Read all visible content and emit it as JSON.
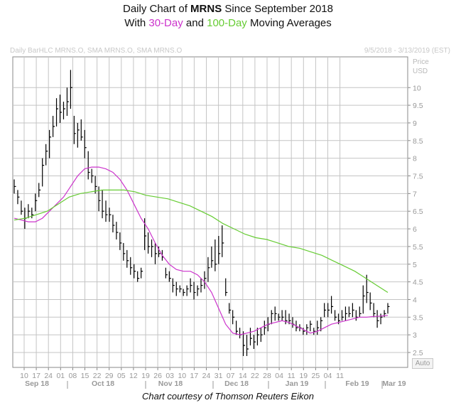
{
  "header": {
    "title_prefix": "Daily Chart of ",
    "ticker": "MRNS",
    "title_suffix": " Since September 2018",
    "sub_with": "With ",
    "sub_ma30": "30-Day",
    "sub_and": " and ",
    "sub_ma100": "100-Day",
    "sub_tail": " Moving Averages",
    "legend_left": "Daily BarHLC MRNS.O, SMA MRNS.O, SMA MRNS.O",
    "legend_right": "9/5/2018 - 3/13/2019 (EST)",
    "price_title": "Price",
    "price_unit": "USD",
    "auto_label": "Auto",
    "credit": "Chart courtesy of Thomson Reuters Eikon"
  },
  "colors": {
    "ma30": "#cc33cc",
    "ma100": "#66cc33",
    "bars": "#000000",
    "grid": "#c4c4c4"
  },
  "chart_data": {
    "type": "line",
    "chart_style": "HLC bars with moving averages",
    "title": "Daily Chart of MRNS Since September 2018",
    "subtitle": "With 30-Day and 100-Day Moving Averages",
    "ylabel": "Price USD",
    "ylim": [
      2.0,
      11.5
    ],
    "y_ticks": [
      "2.5",
      "3",
      "3.5",
      "4",
      "4.5",
      "5",
      "5.5",
      "6",
      "6.5",
      "7",
      "7.5",
      "8",
      "8.5",
      "9",
      "9.5",
      "10"
    ],
    "day_ticks": [
      "10",
      "17",
      "24",
      "01",
      "08",
      "15",
      "22",
      "29",
      "05",
      "12",
      "19",
      "26",
      "03",
      "10",
      "17",
      "24",
      "31",
      "07",
      "14",
      "22",
      "28",
      "04",
      "11",
      "19",
      "25",
      "04",
      "11"
    ],
    "month_labels": [
      "Sep 18",
      "Oct 18",
      "Nov 18",
      "Dec 18",
      "Jan 19",
      "Feb 19",
      "Mar 19"
    ],
    "grid": true,
    "hlc": [
      [
        7.4,
        7.0,
        7.2
      ],
      [
        7.1,
        6.7,
        6.9
      ],
      [
        6.8,
        6.4,
        6.5
      ],
      [
        6.6,
        6.0,
        6.3
      ],
      [
        6.7,
        6.3,
        6.5
      ],
      [
        6.6,
        6.3,
        6.4
      ],
      [
        7.0,
        6.5,
        6.8
      ],
      [
        7.3,
        6.9,
        7.1
      ],
      [
        8.0,
        7.2,
        7.8
      ],
      [
        8.4,
        7.8,
        8.2
      ],
      [
        8.8,
        8.0,
        8.6
      ],
      [
        9.2,
        8.6,
        8.9
      ],
      [
        9.7,
        8.9,
        9.4
      ],
      [
        9.8,
        9.0,
        9.3
      ],
      [
        9.6,
        9.1,
        9.4
      ],
      [
        10.0,
        9.2,
        9.6
      ],
      [
        10.5,
        9.4,
        10.0
      ],
      [
        9.2,
        8.4,
        8.7
      ],
      [
        9.0,
        8.3,
        8.8
      ],
      [
        9.1,
        8.5,
        8.6
      ],
      [
        8.8,
        8.0,
        8.3
      ],
      [
        8.2,
        7.4,
        7.6
      ],
      [
        7.7,
        7.3,
        7.5
      ],
      [
        7.5,
        7.0,
        7.2
      ],
      [
        7.2,
        6.5,
        6.8
      ],
      [
        7.1,
        6.3,
        6.5
      ],
      [
        6.8,
        6.2,
        6.4
      ],
      [
        6.6,
        6.2,
        6.4
      ],
      [
        6.4,
        5.9,
        6.1
      ],
      [
        6.2,
        5.7,
        5.9
      ],
      [
        5.9,
        5.4,
        5.6
      ],
      [
        5.6,
        5.1,
        5.3
      ],
      [
        5.4,
        4.9,
        5.1
      ],
      [
        5.2,
        4.7,
        4.9
      ],
      [
        5.0,
        4.6,
        4.8
      ],
      [
        4.8,
        4.5,
        4.6
      ],
      [
        4.9,
        4.6,
        4.8
      ],
      [
        6.3,
        5.4,
        5.8
      ],
      [
        5.9,
        5.3,
        5.5
      ],
      [
        5.7,
        5.2,
        5.5
      ],
      [
        5.6,
        5.0,
        5.3
      ],
      [
        5.5,
        5.2,
        5.3
      ],
      [
        5.4,
        5.1,
        5.2
      ],
      [
        4.9,
        4.6,
        4.7
      ],
      [
        4.8,
        4.5,
        4.6
      ],
      [
        4.6,
        4.2,
        4.4
      ],
      [
        4.5,
        4.1,
        4.3
      ],
      [
        4.4,
        4.2,
        4.3
      ],
      [
        4.3,
        4.1,
        4.2
      ],
      [
        4.4,
        4.1,
        4.3
      ],
      [
        4.6,
        4.2,
        4.4
      ],
      [
        4.5,
        4.0,
        4.2
      ],
      [
        4.4,
        4.1,
        4.3
      ],
      [
        4.6,
        4.2,
        4.4
      ],
      [
        4.8,
        4.3,
        4.6
      ],
      [
        5.2,
        4.5,
        4.9
      ],
      [
        5.5,
        4.9,
        5.1
      ],
      [
        5.7,
        4.8,
        5.0
      ],
      [
        5.8,
        5.0,
        5.3
      ],
      [
        6.1,
        5.2,
        5.6
      ],
      [
        4.6,
        4.1,
        4.2
      ],
      [
        3.9,
        3.6,
        3.7
      ],
      [
        3.7,
        3.3,
        3.5
      ],
      [
        3.4,
        3.0,
        3.1
      ],
      [
        3.2,
        2.9,
        3.0
      ],
      [
        3.1,
        2.4,
        2.7
      ],
      [
        3.0,
        2.4,
        2.6
      ],
      [
        3.2,
        2.7,
        2.9
      ],
      [
        3.0,
        2.6,
        2.8
      ],
      [
        3.2,
        2.7,
        3.0
      ],
      [
        3.2,
        2.8,
        3.0
      ],
      [
        3.4,
        3.0,
        3.2
      ],
      [
        3.5,
        3.1,
        3.3
      ],
      [
        3.7,
        3.3,
        3.6
      ],
      [
        3.8,
        3.4,
        3.6
      ],
      [
        3.6,
        3.4,
        3.5
      ],
      [
        3.7,
        3.4,
        3.5
      ],
      [
        3.7,
        3.3,
        3.4
      ],
      [
        3.6,
        3.3,
        3.4
      ],
      [
        3.5,
        3.2,
        3.3
      ],
      [
        3.4,
        3.1,
        3.2
      ],
      [
        3.3,
        3.1,
        3.2
      ],
      [
        3.2,
        3.0,
        3.1
      ],
      [
        3.3,
        3.0,
        3.2
      ],
      [
        3.4,
        3.1,
        3.3
      ],
      [
        3.2,
        3.0,
        3.1
      ],
      [
        3.4,
        3.0,
        3.2
      ],
      [
        3.5,
        3.1,
        3.4
      ],
      [
        3.9,
        3.5,
        3.7
      ],
      [
        3.9,
        3.5,
        3.7
      ],
      [
        4.1,
        3.6,
        3.8
      ],
      [
        3.7,
        3.4,
        3.5
      ],
      [
        3.6,
        3.3,
        3.4
      ],
      [
        3.7,
        3.4,
        3.5
      ],
      [
        3.8,
        3.4,
        3.6
      ],
      [
        3.8,
        3.5,
        3.6
      ],
      [
        3.9,
        3.5,
        3.7
      ],
      [
        3.7,
        3.4,
        3.5
      ],
      [
        3.8,
        3.5,
        3.6
      ],
      [
        4.4,
        3.6,
        4.1
      ],
      [
        4.7,
        3.9,
        4.2
      ],
      [
        4.2,
        3.7,
        3.9
      ],
      [
        3.9,
        3.5,
        3.6
      ],
      [
        3.7,
        3.2,
        3.4
      ],
      [
        3.6,
        3.3,
        3.5
      ],
      [
        3.7,
        3.5,
        3.6
      ],
      [
        3.9,
        3.6,
        3.8
      ]
    ],
    "series": [
      {
        "name": "30-Day",
        "values": [
          6.3,
          6.25,
          6.2,
          6.2,
          6.3,
          6.5,
          6.7,
          6.9,
          7.2,
          7.5,
          7.7,
          7.75,
          7.75,
          7.7,
          7.6,
          7.4,
          7.1,
          6.7,
          6.3,
          6.0,
          5.6,
          5.25,
          5.0,
          4.85,
          4.8,
          4.8,
          4.7,
          4.5,
          4.2,
          3.75,
          3.3,
          3.05,
          3.0,
          3.05,
          3.1,
          3.2,
          3.3,
          3.35,
          3.4,
          3.35,
          3.25,
          3.15,
          3.05,
          3.1,
          3.2,
          3.3,
          3.35,
          3.4,
          3.45,
          3.5,
          3.5,
          3.52,
          3.53,
          3.55
        ]
      },
      {
        "name": "100-Day",
        "values": [
          6.25,
          6.3,
          6.4,
          6.5,
          6.7,
          6.9,
          7.0,
          7.05,
          7.1,
          7.1,
          7.1,
          7.05,
          6.95,
          6.9,
          6.85,
          6.75,
          6.65,
          6.5,
          6.35,
          6.15,
          6.0,
          5.85,
          5.75,
          5.7,
          5.6,
          5.5,
          5.45,
          5.35,
          5.25,
          5.1,
          4.95,
          4.8,
          4.6,
          4.4,
          4.2
        ]
      }
    ]
  }
}
